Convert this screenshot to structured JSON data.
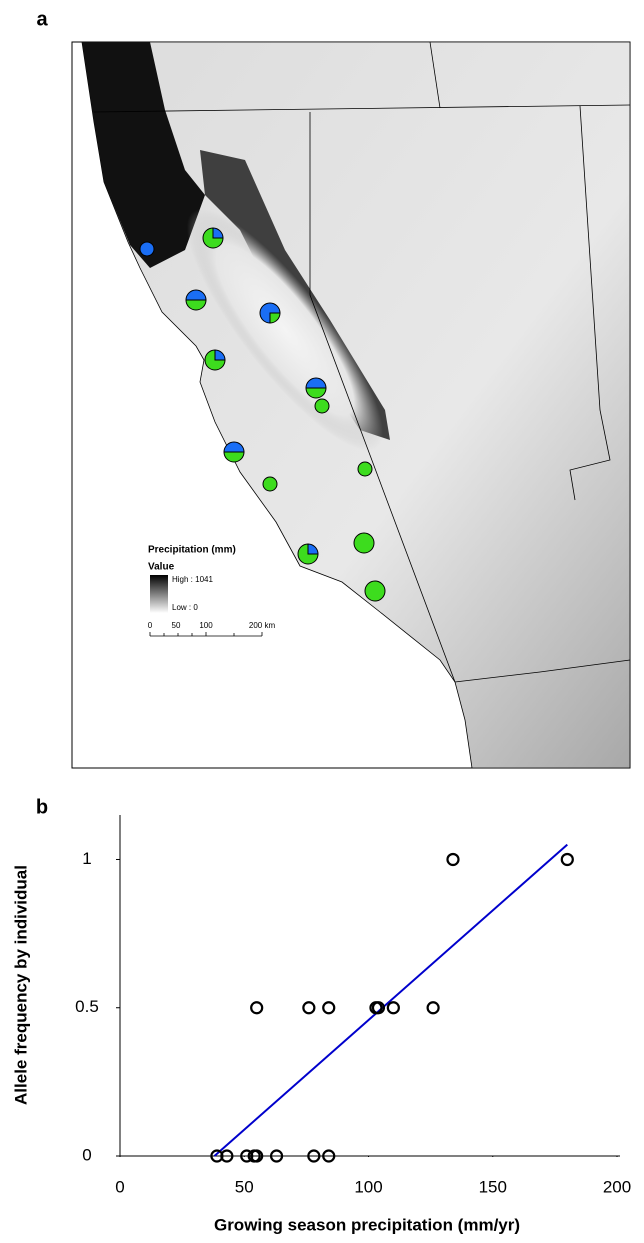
{
  "panel_labels": [
    "a",
    "b"
  ],
  "map": {
    "legend_title": "Precipitation (mm)",
    "legend_subtitle": "Value",
    "high_label": "High : 1041",
    "low_label": "Low : 0",
    "scale_labels": [
      "0",
      "50",
      "100",
      "200 km"
    ],
    "colors": [
      "#1a6ef5",
      "#3ddc1e"
    ],
    "sites_blue_fraction": [
      1,
      0.25,
      0.5,
      0.75,
      0.25,
      0.5,
      0,
      0.5,
      0,
      0,
      0.25,
      0,
      0
    ]
  },
  "chart_data": {
    "type": "scatter",
    "x_label": "Growing season precipitation (mm/yr)",
    "y_label": "Allele frequency by individual",
    "x": [
      134,
      180,
      55,
      76,
      84,
      103,
      104,
      110,
      126,
      39,
      43,
      51,
      54,
      55,
      63,
      78,
      84
    ],
    "y": [
      1,
      1,
      0.5,
      0.5,
      0.5,
      0.5,
      0.5,
      0.5,
      0.5,
      0,
      0,
      0,
      0,
      0,
      0,
      0,
      0
    ],
    "xlim": [
      0,
      200
    ],
    "xticks": [
      0,
      50,
      100,
      150,
      200
    ],
    "ylim": [
      0,
      1.15
    ],
    "yticks": [
      0,
      0.5,
      1
    ],
    "marker_color": "#000000",
    "trendline": {
      "x": [
        38,
        180
      ],
      "y": [
        0,
        1.05
      ],
      "color": "#0000cc"
    }
  }
}
